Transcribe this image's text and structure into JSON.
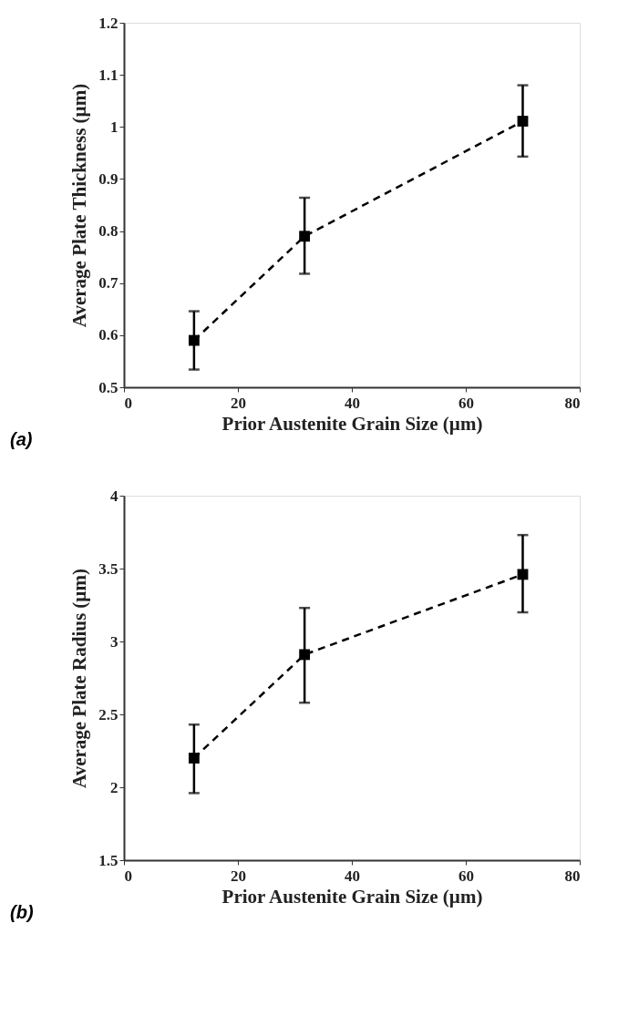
{
  "chart_data": [
    {
      "type": "line",
      "xlabel": "Prior Austenite Grain Size (µm)",
      "ylabel": "Average Plate Thickness  (µm)",
      "annotations": [
        "(a)"
      ],
      "x": [
        12.3,
        31.7,
        70.0
      ],
      "series": [
        {
          "color": "#000000",
          "values": [
            0.59,
            0.79,
            1.011
          ],
          "errors": [
            [
              0.534,
              0.646
            ],
            [
              0.718,
              0.864
            ],
            [
              0.943,
              1.08
            ]
          ]
        }
      ],
      "xlim": [
        0,
        80
      ],
      "xticks": [
        0,
        20,
        40,
        60,
        80
      ],
      "ylim": [
        0.5,
        1.2
      ],
      "yticks": [
        0.5,
        0.6,
        0.7,
        0.8,
        0.9,
        1,
        1.1,
        1.2
      ],
      "marker": "square",
      "line_style": "dashed",
      "grid": false
    },
    {
      "type": "line",
      "xlabel": "Prior Austenite Grain Size (µm)",
      "ylabel": "Average Plate Radius (µm)",
      "annotations": [
        "(b)"
      ],
      "x": [
        12.3,
        31.7,
        70.0
      ],
      "series": [
        {
          "color": "#000000",
          "values": [
            2.2,
            2.91,
            3.46
          ],
          "errors": [
            [
              1.96,
              2.43
            ],
            [
              2.58,
              3.23
            ],
            [
              3.2,
              3.73
            ]
          ]
        }
      ],
      "xlim": [
        0,
        80
      ],
      "xticks": [
        0,
        20,
        40,
        60,
        80
      ],
      "ylim": [
        1.5,
        4
      ],
      "yticks": [
        1.5,
        2,
        2.5,
        3,
        3.5,
        4
      ],
      "marker": "square",
      "line_style": "dashed",
      "grid": false
    }
  ]
}
